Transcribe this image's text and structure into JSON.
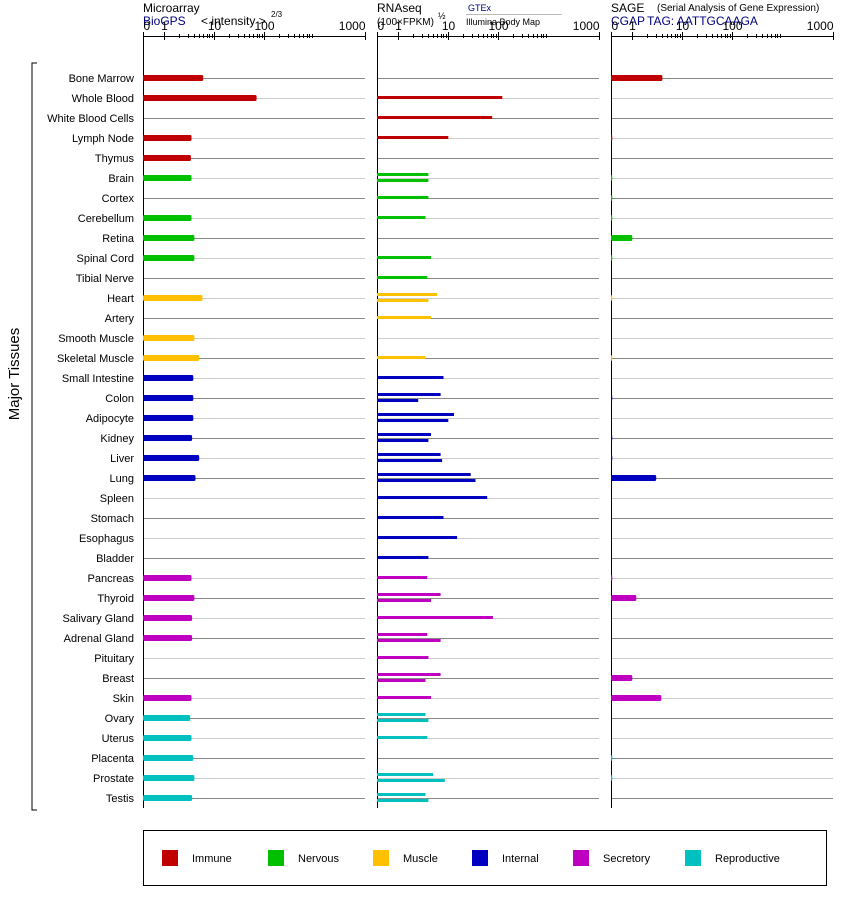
{
  "chart_data": {
    "type": "bar",
    "y_axis_label": "Major Tissues",
    "tissues": [
      "Bone Marrow",
      "Whole Blood",
      "White Blood Cells",
      "Lymph Node",
      "Thymus",
      "Brain",
      "Cortex",
      "Cerebellum",
      "Retina",
      "Spinal Cord",
      "Tibial Nerve",
      "Heart",
      "Artery",
      "Smooth Muscle",
      "Skeletal Muscle",
      "Small Intestine",
      "Colon",
      "Adipocyte",
      "Kidney",
      "Liver",
      "Lung",
      "Spleen",
      "Stomach",
      "Esophagus",
      "Bladder",
      "Pancreas",
      "Thyroid",
      "Salivary Gland",
      "Adrenal Gland",
      "Pituitary",
      "Breast",
      "Skin",
      "Ovary",
      "Uterus",
      "Placenta",
      "Prostate",
      "Testis"
    ],
    "groups": [
      0,
      0,
      0,
      0,
      0,
      1,
      1,
      1,
      1,
      1,
      1,
      2,
      2,
      2,
      2,
      3,
      3,
      3,
      3,
      3,
      3,
      3,
      3,
      3,
      3,
      4,
      4,
      4,
      4,
      4,
      4,
      4,
      5,
      5,
      5,
      5,
      5
    ],
    "categories": [
      {
        "name": "Immune",
        "color": "#c00000"
      },
      {
        "name": "Nervous",
        "color": "#00c000"
      },
      {
        "name": "Muscle",
        "color": "#ffc000"
      },
      {
        "name": "Internal",
        "color": "#0000c0"
      },
      {
        "name": "Secretory",
        "color": "#c000c0"
      },
      {
        "name": "Reproductive",
        "color": "#00c0c0"
      }
    ],
    "ticks": [
      "0",
      "1",
      "10",
      "100",
      "1000"
    ],
    "panels": [
      {
        "title": "Microarray",
        "source": "BioGPS",
        "scale_label": "< intensity >",
        "scale_exponent": "2/3",
        "values": [
          [
            6
          ],
          [
            70
          ],
          [],
          [
            3.5
          ],
          [
            3.4
          ],
          [
            3.5
          ],
          [],
          [
            3.5
          ],
          [
            4
          ],
          [
            4
          ],
          [],
          [
            5.8
          ],
          [],
          [
            4
          ],
          [
            5
          ],
          [
            3.8
          ],
          [
            3.8
          ],
          [
            3.8
          ],
          [
            3.6
          ],
          [
            5
          ],
          [
            4.2
          ],
          [],
          [],
          [],
          [],
          [
            3.5
          ],
          [
            4
          ],
          [
            3.6
          ],
          [
            3.6
          ],
          [],
          [],
          [
            3.5
          ],
          [
            3.3
          ],
          [
            3.5
          ],
          [
            3.8
          ],
          [
            4
          ],
          [
            3.6
          ]
        ]
      },
      {
        "title": "RNAseq",
        "scale_label": "(100×FPKM)",
        "scale_exponent": "½",
        "source_top": "GTEx",
        "source_bottom": "Illumina Body Map",
        "values": [
          [],
          [
            120
          ],
          [
            75
          ],
          [
            10
          ],
          [],
          [
            4,
            4
          ],
          [
            4
          ],
          [
            3.5
          ],
          [],
          [
            4.5
          ],
          [
            3.8
          ],
          [
            6,
            4
          ],
          [
            4.5
          ],
          [],
          [
            3.5
          ],
          [
            8
          ],
          [
            7,
            2.5
          ],
          [
            13,
            10
          ],
          [
            4.5,
            4
          ],
          [
            7,
            7.5
          ],
          [
            28,
            35
          ],
          [
            60
          ],
          [
            8
          ],
          [
            15
          ],
          [
            4
          ],
          [
            3.8
          ],
          [
            7,
            4.5
          ],
          [
            78
          ],
          [
            3.8,
            7
          ],
          [
            4
          ],
          [
            7,
            3.5
          ],
          [
            4.5
          ],
          [
            3.5,
            4
          ],
          [
            3.8
          ],
          [],
          [
            5,
            8.5
          ],
          [
            3.5,
            4
          ]
        ]
      },
      {
        "title": "SAGE",
        "subtitle": "(Serial Analysis of Gene Expression)",
        "source": "CGAP",
        "tag": "TAG: AATTGCAAGA",
        "values": [
          [
            4
          ],
          [],
          [],
          [
            0.05
          ],
          [],
          [
            0.05
          ],
          [
            0.05
          ],
          [
            0.05
          ],
          [
            1.0
          ],
          [
            0.05
          ],
          [],
          [
            0.02
          ],
          [],
          [],
          [
            0.02
          ],
          [],
          [
            0.05
          ],
          [],
          [
            0.05
          ],
          [
            0.05
          ],
          [
            3.0
          ],
          [],
          [],
          [],
          [],
          [
            0.05
          ],
          [
            1.2
          ],
          [],
          [],
          [],
          [
            1.0
          ],
          [
            3.8
          ],
          [],
          [],
          [
            0.05
          ],
          [
            0.05
          ],
          []
        ]
      }
    ]
  }
}
